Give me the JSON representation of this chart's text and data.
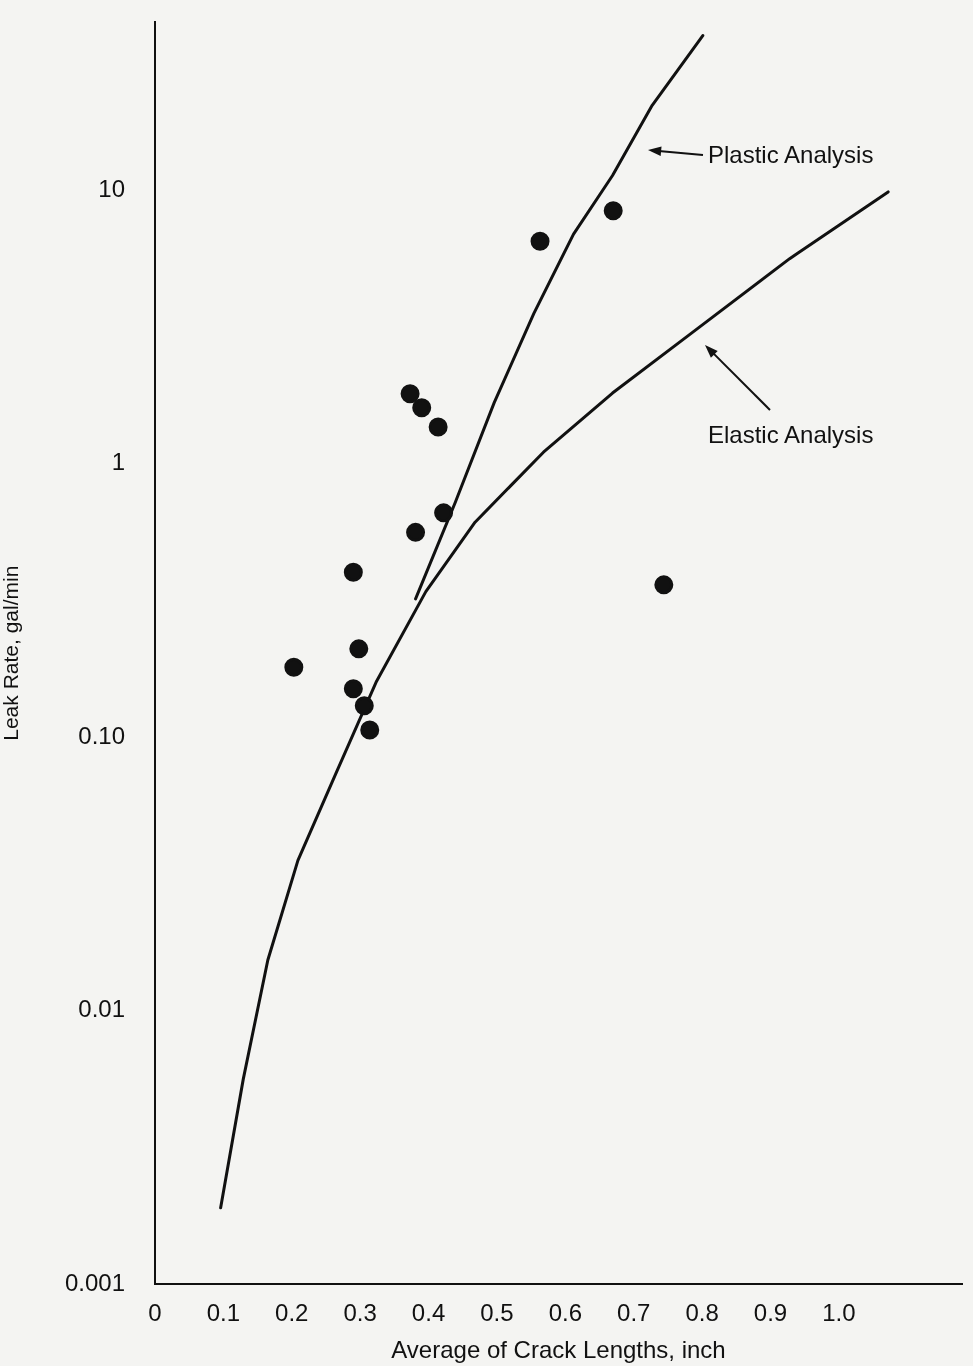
{
  "chart_data": {
    "type": "scatter",
    "xlabel": "Average of Crack Lengths, inch",
    "ylabel": "Leak Rate, gal/min",
    "xlim": [
      0,
      1.18
    ],
    "xticks": [
      0,
      0.1,
      0.2,
      0.3,
      0.4,
      0.5,
      0.6,
      0.7,
      0.8,
      0.9,
      {
        "value": 1,
        "label": "1.0"
      }
    ],
    "ylim": [
      0.001,
      41
    ],
    "yticks": [
      0.001,
      0.01,
      {
        "value": 0.1,
        "label": "0.10"
      },
      1,
      10
    ],
    "log": "y",
    "grid": false,
    "legend": false,
    "marker": "circle",
    "series": [
      {
        "type": "scatter",
        "color": "#111111",
        "x": [
          0.203,
          0.29,
          0.298,
          0.29,
          0.306,
          0.314,
          0.373,
          0.39,
          0.414,
          0.381,
          0.422,
          0.563,
          0.67,
          0.744
        ],
        "values": [
          0.18,
          0.4,
          0.21,
          0.15,
          0.13,
          0.106,
          1.8,
          1.6,
          1.36,
          0.56,
          0.66,
          6.5,
          8.4,
          0.36
        ]
      },
      {
        "type": "line",
        "color": "#111111",
        "marker": "none",
        "x": [
          0.381,
          0.439,
          0.496,
          0.554,
          0.612,
          0.669,
          0.727,
          0.801
        ],
        "values": [
          0.32,
          0.72,
          1.67,
          3.54,
          6.9,
          11.3,
          20.4,
          36.7
        ]
      },
      {
        "type": "line",
        "color": "#111111",
        "marker": "none",
        "x": [
          0.096,
          0.129,
          0.165,
          0.209,
          0.266,
          0.324,
          0.396,
          0.468,
          0.568,
          0.669,
          0.784,
          0.928,
          1.072
        ],
        "values": [
          0.0019,
          0.0056,
          0.0153,
          0.0354,
          0.075,
          0.16,
          0.34,
          0.61,
          1.1,
          1.81,
          2.99,
          5.61,
          9.84
        ]
      }
    ],
    "annotations": [
      "Plastic Analysis",
      "Elastic Analysis"
    ]
  }
}
